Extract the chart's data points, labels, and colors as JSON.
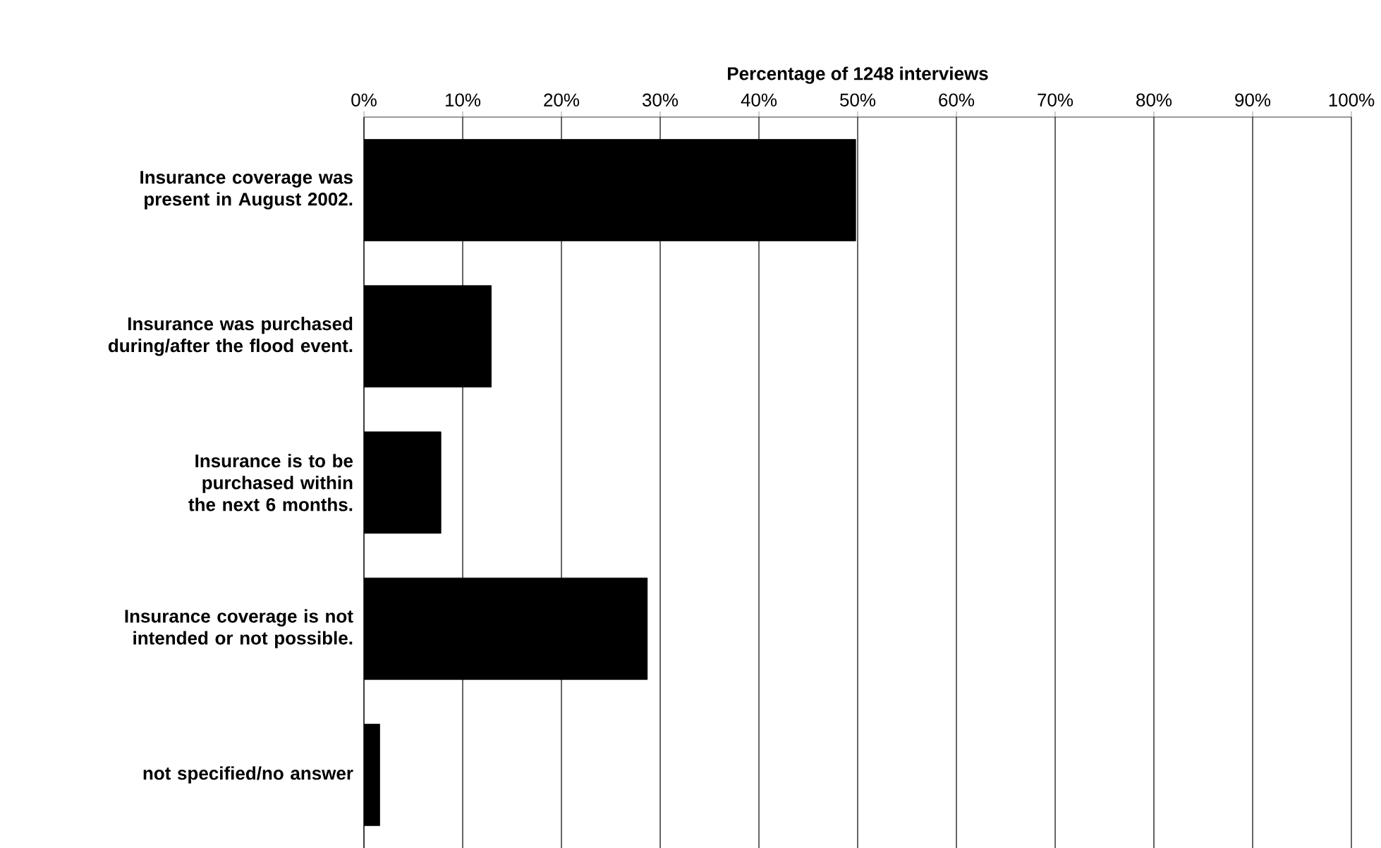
{
  "chart_data": {
    "type": "bar",
    "orientation": "horizontal",
    "xlabel": "Percentage of 1248 interviews",
    "categories": [
      "Insurance coverage was present in August 2002.",
      "Insurance was purchased during/after the flood event.",
      "Insurance is to be purchased within the next 6 months.",
      "Insurance coverage is not intended or not possible.",
      "not specified/no answer"
    ],
    "values": [
      49.8,
      12.9,
      7.8,
      28.7,
      1.6
    ],
    "color": "#000000",
    "xlim": [
      0,
      100
    ],
    "xticks": [
      {
        "value": 0,
        "label": "0%"
      },
      {
        "value": 10,
        "label": "10%"
      },
      {
        "value": 20,
        "label": "20%"
      },
      {
        "value": 30,
        "label": "30%"
      },
      {
        "value": 40,
        "label": "40%"
      },
      {
        "value": 50,
        "label": "50%"
      },
      {
        "value": 60,
        "label": "60%"
      },
      {
        "value": 70,
        "label": "70%"
      },
      {
        "value": 80,
        "label": "80%"
      },
      {
        "value": 90,
        "label": "90%"
      },
      {
        "value": 100,
        "label": "100%"
      }
    ],
    "grid": "x"
  }
}
